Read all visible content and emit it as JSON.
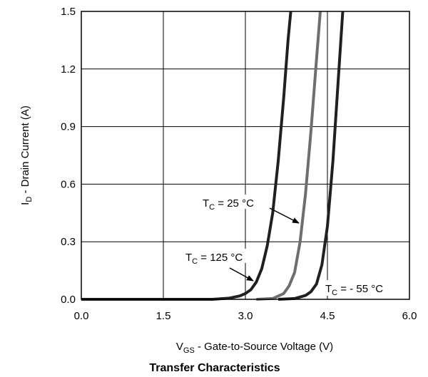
{
  "chart_data": {
    "type": "line",
    "title": "Transfer Characteristics",
    "xlabel": {
      "main": "V",
      "sub": "GS",
      "rest": " - Gate-to-Source Voltage (V)"
    },
    "ylabel": {
      "main": "I",
      "sub": "D",
      "rest": " - Drain Current (A)"
    },
    "xlim": [
      0,
      6
    ],
    "ylim": [
      0,
      1.5
    ],
    "xticks": [
      "0.0",
      "1.5",
      "3.0",
      "4.5",
      "6.0"
    ],
    "yticks": [
      "0.0",
      "0.3",
      "0.6",
      "0.9",
      "1.2",
      "1.5"
    ],
    "grid": true,
    "series": [
      {
        "name": "TC = 125 °C",
        "color": "#231f20",
        "points": [
          [
            0,
            0
          ],
          [
            2.4,
            0
          ],
          [
            2.7,
            0.006
          ],
          [
            2.9,
            0.018
          ],
          [
            3.0,
            0.03
          ],
          [
            3.1,
            0.05
          ],
          [
            3.2,
            0.09
          ],
          [
            3.3,
            0.16
          ],
          [
            3.4,
            0.28
          ],
          [
            3.5,
            0.45
          ],
          [
            3.6,
            0.72
          ],
          [
            3.7,
            1.05
          ],
          [
            3.78,
            1.35
          ],
          [
            3.83,
            1.5
          ]
        ]
      },
      {
        "name": "TC = 25 °C",
        "color": "#6d6e71",
        "points": [
          [
            3.2,
            0
          ],
          [
            3.5,
            0.004
          ],
          [
            3.7,
            0.03
          ],
          [
            3.8,
            0.07
          ],
          [
            3.9,
            0.14
          ],
          [
            4.0,
            0.3
          ],
          [
            4.1,
            0.55
          ],
          [
            4.2,
            0.88
          ],
          [
            4.3,
            1.25
          ],
          [
            4.37,
            1.5
          ]
        ]
      },
      {
        "name": "TC = - 55 °C",
        "color": "#231f20",
        "points": [
          [
            3.6,
            0
          ],
          [
            3.9,
            0.004
          ],
          [
            4.1,
            0.02
          ],
          [
            4.2,
            0.04
          ],
          [
            4.3,
            0.08
          ],
          [
            4.4,
            0.18
          ],
          [
            4.5,
            0.38
          ],
          [
            4.6,
            0.72
          ],
          [
            4.7,
            1.15
          ],
          [
            4.78,
            1.5
          ]
        ]
      }
    ],
    "annotations": [
      {
        "main": "T",
        "sub": "C",
        "rest": " = 25 °C"
      },
      {
        "main": "T",
        "sub": "C",
        "rest": " = 125 °C"
      },
      {
        "main": "T",
        "sub": "C",
        "rest": " = - 55 °C"
      }
    ]
  }
}
